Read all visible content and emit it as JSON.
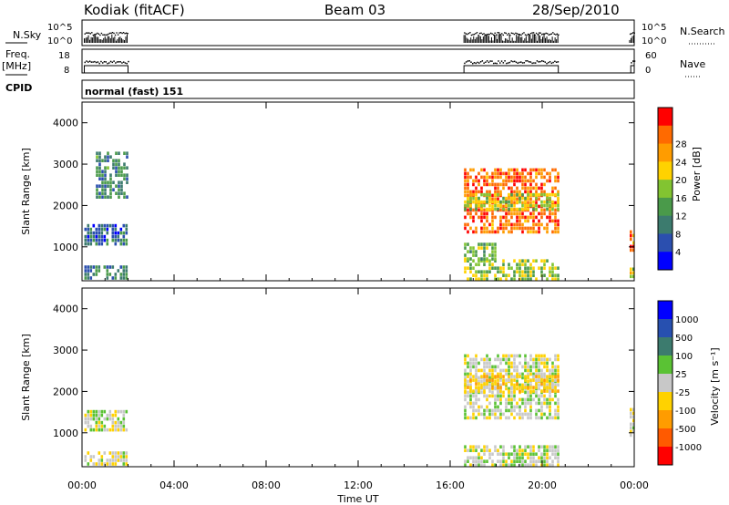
{
  "header": {
    "station": "Kodiak (fitACF)",
    "beam": "Beam 03",
    "date": "28/Sep/2010"
  },
  "side_labels": {
    "nsky": "N.Sky",
    "freq_line1": "Freq.",
    "freq_line2": "[MHz]",
    "cpid": "CPID",
    "nsearch": "N.Search",
    "nave": "Nave"
  },
  "cpid_text": "normal (fast) 151",
  "x_axis": {
    "label": "Time UT",
    "ticks": [
      "00:00",
      "04:00",
      "08:00",
      "12:00",
      "16:00",
      "20:00",
      "00:00"
    ]
  },
  "nsky_axis": {
    "ticks": [
      "10^5",
      "10^0"
    ]
  },
  "freq_axis": {
    "ticks": [
      "18",
      "8"
    ]
  },
  "nave_axis": {
    "ticks": [
      "60",
      "0"
    ]
  },
  "colors": {
    "power_scale": [
      "#0000ff",
      "#2b4faf",
      "#3c7b6e",
      "#4a9a4a",
      "#82c431",
      "#ffd200",
      "#ff9c00",
      "#ff6a00",
      "#ff0000"
    ],
    "velocity_scale": [
      "#0000ff",
      "#2750b0",
      "#3c7b6e",
      "#5ac234",
      "#c8c8c8",
      "#ffd200",
      "#ff9c00",
      "#ff5a00",
      "#ff0000"
    ]
  },
  "chart_data": [
    {
      "type": "heatmap",
      "title": "Power",
      "xlabel": "Time UT",
      "ylabel": "Slant Range [km]",
      "ylim": [
        180,
        4500
      ],
      "y_ticks": [
        "1000",
        "2000",
        "3000",
        "4000"
      ],
      "colorbar": {
        "label": "Power [dB]",
        "ticks": [
          "4",
          "8",
          "12",
          "16",
          "20",
          "24",
          "28"
        ],
        "range": [
          0,
          32
        ]
      },
      "regions": [
        {
          "t": [
            0.1,
            2.0
          ],
          "range": [
            1050,
            1550
          ],
          "value": 7
        },
        {
          "t": [
            0.1,
            2.0
          ],
          "range": [
            250,
            550
          ],
          "value": 9
        },
        {
          "t": [
            0.6,
            2.0
          ],
          "range": [
            2200,
            3300
          ],
          "value": 10
        },
        {
          "t": [
            16.6,
            20.7
          ],
          "range": [
            1400,
            2900
          ],
          "value": 26
        },
        {
          "t": [
            16.6,
            20.7
          ],
          "range": [
            1900,
            2300
          ],
          "value": 17
        },
        {
          "t": [
            16.6,
            20.7
          ],
          "range": [
            200,
            700
          ],
          "value": 16
        },
        {
          "t": [
            16.6,
            18.0
          ],
          "range": [
            700,
            1100
          ],
          "value": 14
        },
        {
          "t": [
            23.8,
            24.0
          ],
          "range": [
            900,
            1400
          ],
          "value": 25
        },
        {
          "t": [
            23.8,
            24.0
          ],
          "range": [
            300,
            500
          ],
          "value": 18
        }
      ]
    },
    {
      "type": "heatmap",
      "title": "Velocity",
      "xlabel": "Time UT",
      "ylabel": "Slant Range [km]",
      "ylim": [
        180,
        4500
      ],
      "y_ticks": [
        "1000",
        "2000",
        "3000",
        "4000"
      ],
      "colorbar": {
        "label": "Velocity [m s⁻¹]",
        "ticks": [
          "1000",
          "500",
          "100",
          "25",
          "-25",
          "-100",
          "-500",
          "-1000"
        ],
        "range": [
          -1250,
          1250
        ]
      },
      "regions": [
        {
          "t": [
            0.1,
            2.0
          ],
          "range": [
            1050,
            1550
          ],
          "value": 0
        },
        {
          "t": [
            0.1,
            2.0
          ],
          "range": [
            250,
            550
          ],
          "value": -50
        },
        {
          "t": [
            16.6,
            20.7
          ],
          "range": [
            1400,
            2900
          ],
          "value": 0
        },
        {
          "t": [
            16.6,
            20.7
          ],
          "range": [
            2000,
            2400
          ],
          "value": -300
        },
        {
          "t": [
            16.6,
            20.7
          ],
          "range": [
            200,
            700
          ],
          "value": 50
        },
        {
          "t": [
            23.8,
            24.0
          ],
          "range": [
            900,
            1600
          ],
          "value": 0
        }
      ]
    },
    {
      "type": "line",
      "title": "N.Sky",
      "series": [
        {
          "name": "N.Sky",
          "x": [
            0.2,
            1.0,
            2.0,
            16.6,
            18.0,
            20.7,
            23.9
          ],
          "values": [
            30,
            60,
            40,
            200,
            400,
            150,
            20
          ]
        }
      ]
    },
    {
      "type": "line",
      "title": "Freq.",
      "ylim": [
        8,
        18
      ],
      "series": [
        {
          "name": "Freq.",
          "x": [
            0.1,
            2.0,
            16.6,
            20.7,
            23.9
          ],
          "values": [
            12,
            12,
            12,
            12,
            12
          ]
        }
      ]
    }
  ]
}
